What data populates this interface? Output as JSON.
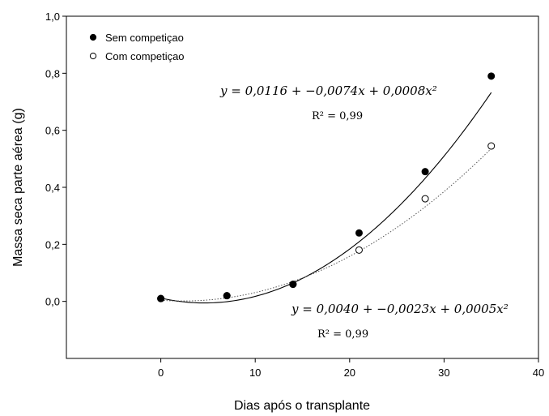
{
  "chart_data": {
    "type": "scatter",
    "title": "",
    "xlabel": "Dias após o transplante",
    "ylabel": "Massa seca parte aérea (g)",
    "xlim": [
      -10,
      40
    ],
    "ylim": [
      -0.2,
      1.0
    ],
    "x_ticks": [
      0,
      10,
      20,
      30,
      40
    ],
    "y_ticks": [
      0.0,
      0.2,
      0.4,
      0.6,
      0.8,
      1.0
    ],
    "x_tick_labels": [
      "0",
      "10",
      "20",
      "30",
      "40"
    ],
    "y_tick_labels": [
      "0,0",
      "0,2",
      "0,4",
      "0,6",
      "0,8",
      "1,0"
    ],
    "legend_position": "top-left",
    "grid": false,
    "series": [
      {
        "name": "Sem competiçao",
        "marker": "filled-circle",
        "color": "#000000",
        "line_style": "solid",
        "x": [
          0,
          7,
          14,
          21,
          28,
          35
        ],
        "y": [
          0.01,
          0.02,
          0.06,
          0.24,
          0.455,
          0.79
        ],
        "fit": {
          "a": 0.0116,
          "b": -0.0074,
          "c": 0.0008
        },
        "equation": "y = 0,0116 + −0,0074x + 0,0008x²",
        "r2": "R² = 0,99"
      },
      {
        "name": "Com competiçao",
        "marker": "open-circle",
        "color": "#000000",
        "line_style": "dotted",
        "x": [
          0,
          7,
          14,
          21,
          28,
          35
        ],
        "y": [
          0.01,
          0.02,
          0.06,
          0.18,
          0.36,
          0.545
        ],
        "fit": {
          "a": 0.004,
          "b": -0.0023,
          "c": 0.0005
        },
        "equation": "y = 0,0040 + −0,0023x + 0,0005x²",
        "r2": "R² = 0,99"
      }
    ]
  }
}
